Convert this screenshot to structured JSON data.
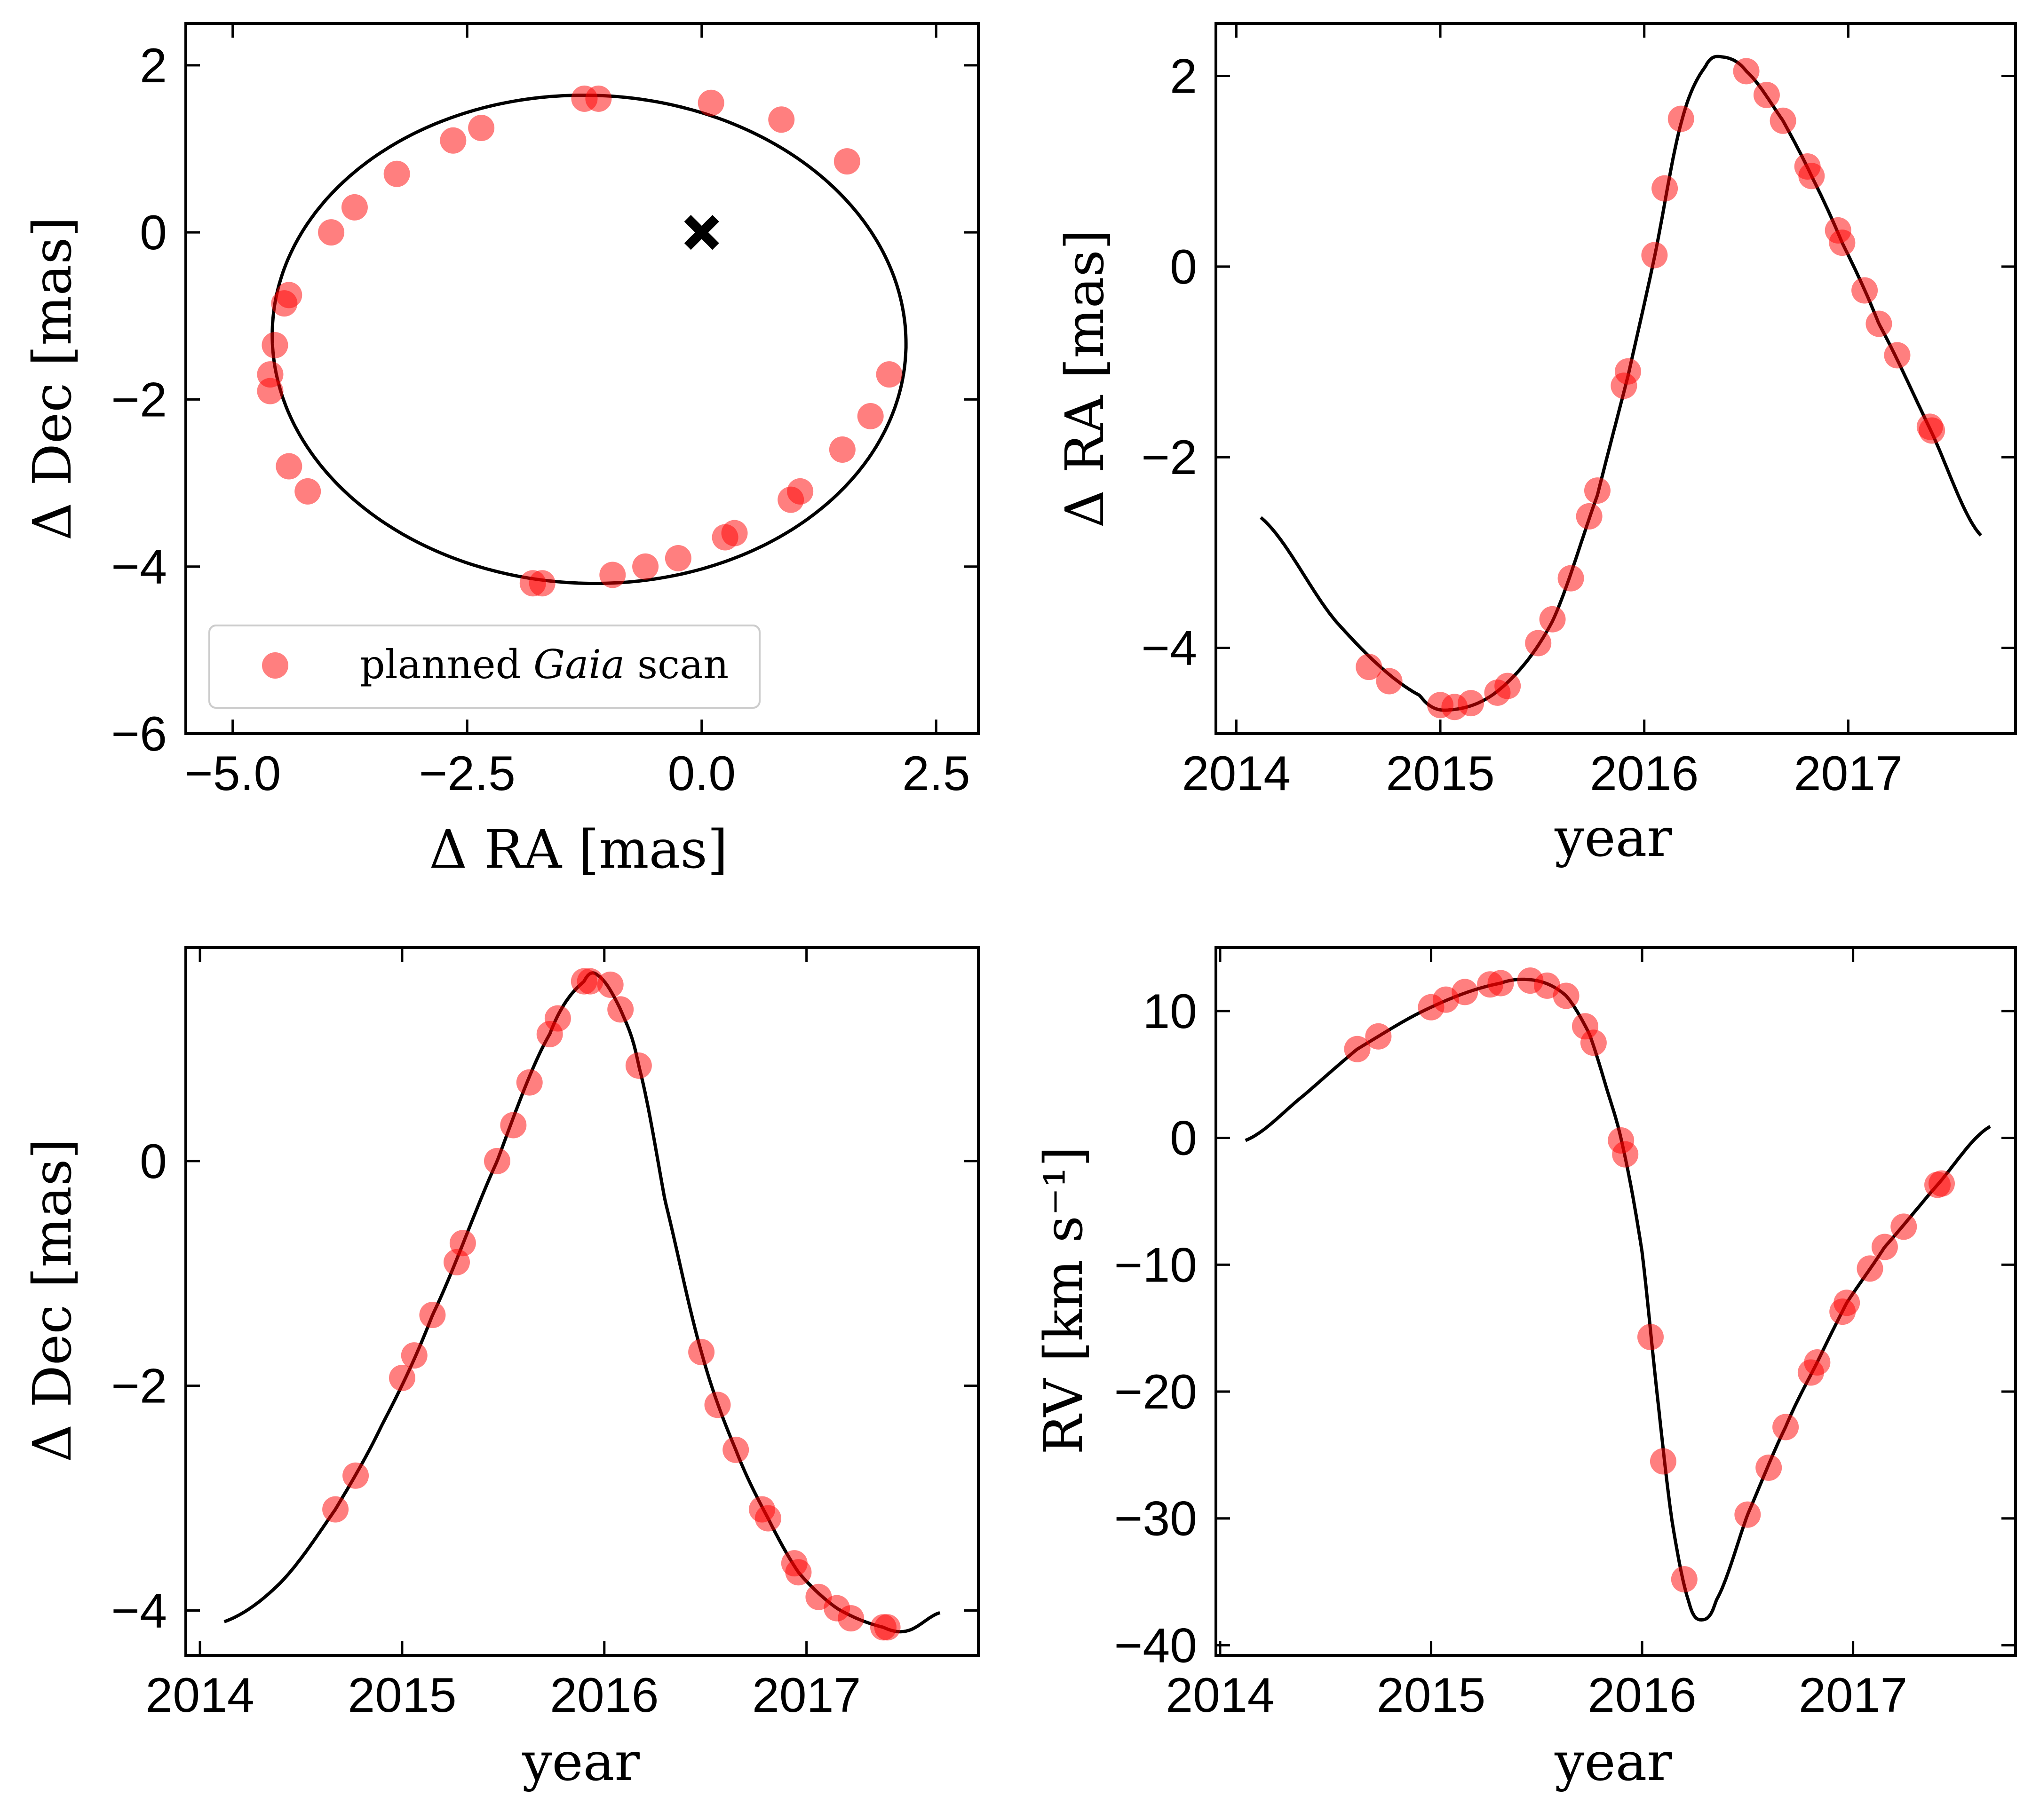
{
  "chart_data": [
    {
      "id": "orbit",
      "type": "scatter",
      "xlabel": "Δ RA [mas]",
      "ylabel": "Δ Dec [mas]",
      "xlim": [
        -5.5,
        2.95
      ],
      "ylim": [
        -6,
        2.5
      ],
      "xticks": [
        -5.0,
        -2.5,
        0.0,
        2.5
      ],
      "xtick_labels": [
        "−5.0",
        "−2.5",
        "0.0",
        "2.5"
      ],
      "yticks": [
        -6,
        -4,
        -2,
        0,
        2
      ],
      "ytick_labels": [
        "−6",
        "−4",
        "−2",
        "0",
        "2"
      ],
      "curve": "orbit ellipse",
      "marker": "star position at (0, 0)",
      "legend": {
        "position": "lower-left",
        "label_prefix": "planned",
        "label_italic": "Gaia",
        "label_suffix": "scan"
      },
      "points": [
        [
          -4.6,
          -1.9
        ],
        [
          -4.6,
          -1.7
        ],
        [
          -4.55,
          -1.35
        ],
        [
          -4.45,
          -0.85
        ],
        [
          -4.4,
          -0.75
        ],
        [
          -3.95,
          0.0
        ],
        [
          -3.7,
          0.3
        ],
        [
          -3.25,
          0.7
        ],
        [
          -2.65,
          1.1
        ],
        [
          -2.35,
          1.25
        ],
        [
          -1.25,
          1.6
        ],
        [
          -1.1,
          1.6
        ],
        [
          0.1,
          1.55
        ],
        [
          0.85,
          1.35
        ],
        [
          1.55,
          0.85
        ],
        [
          2.0,
          -1.7
        ],
        [
          1.8,
          -2.2
        ],
        [
          1.5,
          -2.6
        ],
        [
          1.05,
          -3.1
        ],
        [
          0.95,
          -3.2
        ],
        [
          0.35,
          -3.6
        ],
        [
          0.25,
          -3.65
        ],
        [
          -0.25,
          -3.9
        ],
        [
          -0.6,
          -4.0
        ],
        [
          -0.95,
          -4.1
        ],
        [
          -1.7,
          -4.2
        ],
        [
          -1.8,
          -4.2
        ],
        [
          -4.2,
          -3.1
        ],
        [
          -4.4,
          -2.8
        ]
      ]
    },
    {
      "id": "ra-time",
      "type": "scatter",
      "xlabel": "year",
      "ylabel": "Δ RA [mas]",
      "xlim": [
        2013.9,
        2017.82
      ],
      "ylim": [
        -4.9,
        2.55
      ],
      "xticks": [
        2014,
        2015,
        2016,
        2017
      ],
      "xtick_labels": [
        "2014",
        "2015",
        "2016",
        "2017"
      ],
      "yticks": [
        -4,
        -2,
        0,
        2
      ],
      "ytick_labels": [
        "−4",
        "−2",
        "0",
        "2"
      ],
      "points": [
        [
          2014.65,
          -4.2
        ],
        [
          2014.75,
          -4.35
        ],
        [
          2015.0,
          -4.6
        ],
        [
          2015.07,
          -4.62
        ],
        [
          2015.15,
          -4.58
        ],
        [
          2015.28,
          -4.47
        ],
        [
          2015.33,
          -4.4
        ],
        [
          2015.48,
          -3.95
        ],
        [
          2015.55,
          -3.7
        ],
        [
          2015.64,
          -3.27
        ],
        [
          2015.73,
          -2.62
        ],
        [
          2015.77,
          -2.35
        ],
        [
          2015.9,
          -1.25
        ],
        [
          2015.92,
          -1.1
        ],
        [
          2016.05,
          0.12
        ],
        [
          2016.1,
          0.82
        ],
        [
          2016.18,
          1.55
        ],
        [
          2016.5,
          2.05
        ],
        [
          2016.6,
          1.8
        ],
        [
          2016.68,
          1.53
        ],
        [
          2016.8,
          1.05
        ],
        [
          2016.82,
          0.95
        ],
        [
          2016.95,
          0.38
        ],
        [
          2016.97,
          0.25
        ],
        [
          2017.08,
          -0.25
        ],
        [
          2017.15,
          -0.6
        ],
        [
          2017.24,
          -0.93
        ],
        [
          2017.4,
          -1.68
        ],
        [
          2017.41,
          -1.72
        ]
      ]
    },
    {
      "id": "dec-time",
      "type": "scatter",
      "xlabel": "year",
      "ylabel": "Δ Dec [mas]",
      "xlim": [
        2013.93,
        2017.85
      ],
      "ylim": [
        -4.4,
        1.9
      ],
      "xticks": [
        2014,
        2015,
        2016,
        2017
      ],
      "xtick_labels": [
        "2014",
        "2015",
        "2016",
        "2017"
      ],
      "yticks": [
        -4,
        -2,
        0
      ],
      "ytick_labels": [
        "−4",
        "−2",
        "0"
      ],
      "points": [
        [
          2014.67,
          -3.1
        ],
        [
          2014.77,
          -2.8
        ],
        [
          2015.0,
          -1.93
        ],
        [
          2015.06,
          -1.73
        ],
        [
          2015.15,
          -1.37
        ],
        [
          2015.27,
          -0.9
        ],
        [
          2015.3,
          -0.73
        ],
        [
          2015.47,
          0.0
        ],
        [
          2015.55,
          0.32
        ],
        [
          2015.63,
          0.7
        ],
        [
          2015.73,
          1.13
        ],
        [
          2015.77,
          1.27
        ],
        [
          2015.9,
          1.6
        ],
        [
          2015.93,
          1.6
        ],
        [
          2016.03,
          1.57
        ],
        [
          2016.08,
          1.35
        ],
        [
          2016.17,
          0.85
        ],
        [
          2016.48,
          -1.7
        ],
        [
          2016.56,
          -2.17
        ],
        [
          2016.65,
          -2.57
        ],
        [
          2016.78,
          -3.1
        ],
        [
          2016.81,
          -3.18
        ],
        [
          2016.94,
          -3.58
        ],
        [
          2016.96,
          -3.66
        ],
        [
          2017.06,
          -3.88
        ],
        [
          2017.15,
          -3.98
        ],
        [
          2017.22,
          -4.07
        ],
        [
          2017.38,
          -4.15
        ],
        [
          2017.4,
          -4.15
        ]
      ]
    },
    {
      "id": "rv-time",
      "type": "scatter",
      "xlabel": "year",
      "ylabel": "RV [km s⁻¹]",
      "xlim": [
        2013.98,
        2017.77
      ],
      "ylim": [
        -40.8,
        15
      ],
      "xticks": [
        2014,
        2015,
        2016,
        2017
      ],
      "xtick_labels": [
        "2014",
        "2015",
        "2016",
        "2017"
      ],
      "yticks": [
        -40,
        -30,
        -20,
        -10,
        0,
        10
      ],
      "ytick_labels": [
        "−40",
        "−30",
        "−20",
        "−10",
        "0",
        "10"
      ],
      "points": [
        [
          2014.65,
          7.0
        ],
        [
          2014.75,
          8.0
        ],
        [
          2015.0,
          10.3
        ],
        [
          2015.07,
          10.9
        ],
        [
          2015.16,
          11.5
        ],
        [
          2015.28,
          12.1
        ],
        [
          2015.33,
          12.2
        ],
        [
          2015.47,
          12.4
        ],
        [
          2015.55,
          12.0
        ],
        [
          2015.64,
          11.2
        ],
        [
          2015.73,
          8.8
        ],
        [
          2015.77,
          7.5
        ],
        [
          2015.9,
          -0.2
        ],
        [
          2015.92,
          -1.3
        ],
        [
          2016.04,
          -15.7
        ],
        [
          2016.1,
          -25.5
        ],
        [
          2016.2,
          -34.8
        ],
        [
          2016.5,
          -29.7
        ],
        [
          2016.6,
          -26.0
        ],
        [
          2016.68,
          -22.8
        ],
        [
          2016.8,
          -18.5
        ],
        [
          2016.83,
          -17.7
        ],
        [
          2016.95,
          -13.7
        ],
        [
          2016.97,
          -13.0
        ],
        [
          2017.08,
          -10.3
        ],
        [
          2017.15,
          -8.6
        ],
        [
          2017.24,
          -7.0
        ],
        [
          2017.4,
          -3.7
        ],
        [
          2017.42,
          -3.6
        ]
      ]
    }
  ]
}
